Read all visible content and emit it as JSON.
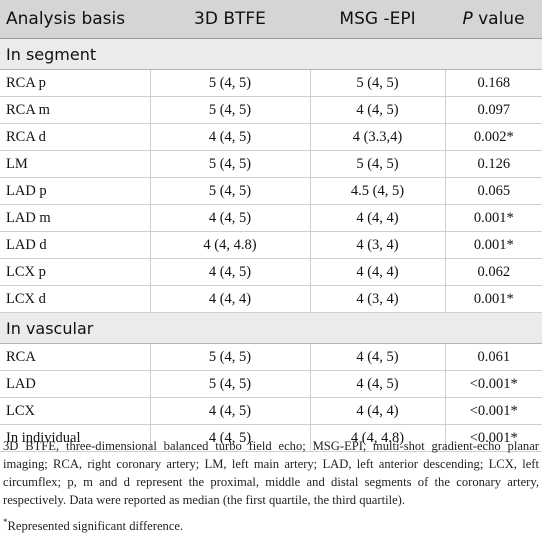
{
  "table": {
    "headers": {
      "col1": "Analysis basis",
      "col2": "3D BTFE",
      "col3": "MSG -EPI",
      "col4_italic": "P",
      "col4_rest": " value"
    },
    "sections": [
      {
        "title": "In segment",
        "rows": [
          {
            "label": "RCA p",
            "btfe": "5 (4, 5)",
            "epi": "5 (4, 5)",
            "p": "0.168"
          },
          {
            "label": "RCA m",
            "btfe": "5 (4, 5)",
            "epi": "4 (4, 5)",
            "p": "0.097"
          },
          {
            "label": "RCA d",
            "btfe": "4 (4, 5)",
            "epi": "4 (3.3,4)",
            "p": "0.002*"
          },
          {
            "label": "LM",
            "btfe": "5 (4, 5)",
            "epi": "5 (4, 5)",
            "p": "0.126"
          },
          {
            "label": "LAD p",
            "btfe": "5 (4, 5)",
            "epi": "4.5 (4, 5)",
            "p": "0.065"
          },
          {
            "label": "LAD m",
            "btfe": "4 (4, 5)",
            "epi": "4 (4, 4)",
            "p": "0.001*"
          },
          {
            "label": "LAD d",
            "btfe": "4 (4, 4.8)",
            "epi": "4 (3, 4)",
            "p": "0.001*"
          },
          {
            "label": "LCX p",
            "btfe": "4 (4, 5)",
            "epi": "4 (4, 4)",
            "p": "0.062"
          },
          {
            "label": "LCX d",
            "btfe": "4 (4, 4)",
            "epi": "4 (3, 4)",
            "p": "0.001*"
          }
        ]
      },
      {
        "title": "In vascular",
        "rows": [
          {
            "label": "RCA",
            "btfe": "5 (4, 5)",
            "epi": "4 (4, 5)",
            "p": "0.061"
          },
          {
            "label": "LAD",
            "btfe": "5 (4, 5)",
            "epi": "4 (4, 5)",
            "p": "<0.001*"
          },
          {
            "label": "LCX",
            "btfe": "4 (4, 5)",
            "epi": "4 (4, 4)",
            "p": "<0.001*"
          },
          {
            "label": "In individual",
            "btfe": "4 (4, 5)",
            "epi": "4 (4, 4.8)",
            "p": "<0.001*"
          }
        ]
      }
    ]
  },
  "footnotes": {
    "abbreviations": "3D BTFE, three-dimensional balanced turbo field echo; MSG-EPI, multi-shot gradient-echo planar imaging; RCA, right coronary artery; LM, left main artery; LAD, left anterior descending; LCX, left circumflex; p, m and d represent the proximal, middle and distal segments of the coronary artery, respectively. Data were reported as median (the first quartile, the third quartile).",
    "significance_mark": "*",
    "significance_text": "Represented significant difference."
  }
}
